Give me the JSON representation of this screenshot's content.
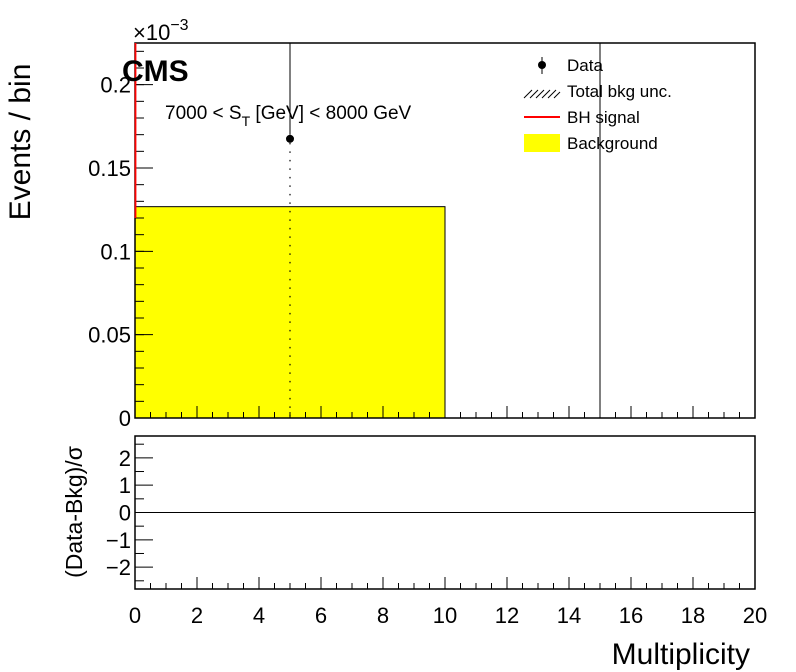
{
  "chart_data": [
    {
      "type": "bar",
      "panel": "main",
      "title": "",
      "label_cms": "CMS",
      "annotation": {
        "prefix": "7000 < S",
        "sub": "T",
        "suffix": " [GeV] < 8000 GeV"
      },
      "exponent": {
        "base": "×10",
        "power": "−3"
      },
      "xlabel": "Multiplicity",
      "ylabel": "Events / bin",
      "xlim": [
        0,
        20
      ],
      "ylim": [
        0,
        0.225
      ],
      "y_ticks": [
        "0",
        "0.05",
        "0.1",
        "0.15",
        "0.2"
      ],
      "y_tick_values": [
        0,
        0.05,
        0.1,
        0.15,
        0.2
      ],
      "background": {
        "bins": [
          [
            0,
            10
          ]
        ],
        "values": [
          0.1268
        ],
        "color": "#ffff00"
      },
      "data": {
        "x": [
          5
        ],
        "y": [
          0.1675
        ],
        "yerr_up": [
          0.3
        ],
        "yerr_down": [
          0.1675
        ]
      },
      "data_upper_limit_line": {
        "x": 15
      },
      "bh_signal": {
        "color": "#ff0000"
      },
      "legend": [
        {
          "name": "Data",
          "style": "marker"
        },
        {
          "name": "Total bkg unc.",
          "style": "hatch"
        },
        {
          "name": "BH signal",
          "style": "line",
          "color": "#ff0000"
        },
        {
          "name": "Background",
          "style": "fill",
          "color": "#ffff00"
        }
      ],
      "legend_position": "top-right"
    },
    {
      "type": "line",
      "panel": "ratio",
      "ylabel": "(Data-Bkg)/σ",
      "xlabel": "Multiplicity",
      "xlim": [
        0,
        20
      ],
      "ylim": [
        -2.8,
        2.8
      ],
      "y_tick_values": [
        -2,
        -1,
        0,
        1,
        2
      ],
      "y_ticks": [
        "−2",
        "−1",
        "0",
        "1",
        "2"
      ],
      "x_tick_values": [
        0,
        2,
        4,
        6,
        8,
        10,
        12,
        14,
        16,
        18,
        20
      ],
      "x_ticks": [
        "0",
        "2",
        "4",
        "6",
        "8",
        "10",
        "12",
        "14",
        "16",
        "18",
        "20"
      ],
      "reference_line": 0
    }
  ]
}
